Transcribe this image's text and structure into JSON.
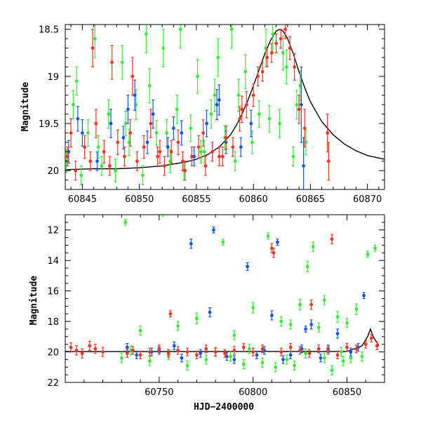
{
  "chart_data": [
    {
      "type": "scatter",
      "panel": "top",
      "ylabel": "Magnitude",
      "xlabel": "",
      "xlim": [
        60843.5,
        60871.5
      ],
      "ylim": [
        20.2,
        18.45
      ],
      "y_inverted": true,
      "xticks": [
        60845,
        60850,
        60855,
        60860,
        60865,
        60870
      ],
      "yticks": [
        18.5,
        19,
        19.5,
        20
      ],
      "ytick_labels": [
        "18.5",
        "19",
        "19.5",
        "20"
      ],
      "grid": false,
      "colors": {
        "green": "#33ee33",
        "blue": "#1155ee",
        "red": "#ff3322",
        "model": "#000000"
      },
      "model_curve": {
        "name": "model",
        "x": [
          60843.5,
          60846,
          60848,
          60850,
          60852,
          60854,
          60855,
          60856,
          60857,
          60858,
          60858.5,
          60859,
          60859.5,
          60860,
          60860.5,
          60861,
          60861.5,
          60862,
          60862.3,
          60862.6,
          60863,
          60863.5,
          60864,
          60864.5,
          60865,
          60866,
          60867,
          60868,
          60869,
          60870,
          60871.5
        ],
        "y": [
          19.99,
          19.98,
          19.98,
          19.97,
          19.95,
          19.91,
          19.88,
          19.83,
          19.75,
          19.62,
          19.52,
          19.4,
          19.26,
          19.1,
          18.93,
          18.76,
          18.62,
          18.52,
          18.5,
          18.52,
          18.6,
          18.76,
          18.95,
          19.12,
          19.27,
          19.48,
          19.62,
          19.72,
          19.79,
          19.84,
          19.88
        ]
      },
      "series": [
        {
          "name": "green",
          "color": "#33ee33",
          "x": [
            60843.6,
            60844.2,
            60844.9,
            60845.5,
            60846.1,
            60846.7,
            60847.3,
            60847.9,
            60848.5,
            60849.1,
            60849.7,
            60850.3,
            60850.9,
            60851.5,
            60852.1,
            60852.7,
            60853.3,
            60853.9,
            60854.5,
            60855.1,
            60855.7,
            60856.3,
            60856.9,
            60857.5,
            60858.1,
            60858.7,
            60859.3,
            60859.9,
            60860.5,
            60861.1,
            60861.7,
            60862.3,
            60862.9,
            60863.5,
            60864.1,
            60864.6,
            60844.5,
            60846.4,
            60848.8,
            60850.6,
            60852.4,
            60853.6,
            60855.4,
            60856.6,
            60858.4,
            60861.4,
            60862.6,
            60863.8
          ],
          "y": [
            19.9,
            19.3,
            20.05,
            19.6,
            18.6,
            19.95,
            19.4,
            20.0,
            18.85,
            19.7,
            19.3,
            20.05,
            19.1,
            19.6,
            18.7,
            19.9,
            19.35,
            20.0,
            19.55,
            19.0,
            19.8,
            19.4,
            18.8,
            19.65,
            18.5,
            19.2,
            18.95,
            19.7,
            19.4,
            18.7,
            18.55,
            19.5,
            18.9,
            19.85,
            19.1,
            19.7,
            19.05,
            19.75,
            19.5,
            18.55,
            19.6,
            18.5,
            19.8,
            19.2,
            19.9,
            19.45,
            18.75,
            19.3
          ],
          "err": [
            0.12,
            0.15,
            0.1,
            0.14,
            0.2,
            0.1,
            0.15,
            0.12,
            0.18,
            0.14,
            0.16,
            0.1,
            0.18,
            0.13,
            0.2,
            0.12,
            0.15,
            0.1,
            0.14,
            0.18,
            0.12,
            0.15,
            0.2,
            0.13,
            0.2,
            0.17,
            0.18,
            0.12,
            0.14,
            0.2,
            0.2,
            0.15,
            0.18,
            0.1,
            0.16,
            0.13,
            0.15,
            0.12,
            0.13,
            0.2,
            0.14,
            0.2,
            0.12,
            0.17,
            0.1,
            0.14,
            0.18,
            0.15
          ]
        },
        {
          "name": "blue",
          "color": "#1155ee",
          "x": [
            60843.8,
            60845.0,
            60846.3,
            60847.5,
            60848.6,
            60849.6,
            60850.7,
            60851.2,
            60852.5,
            60853.7,
            60854.8,
            60855.9,
            60856.8,
            60857.6,
            60858.9,
            60859.8,
            60864.2,
            60864.4,
            60844.6,
            60849.0,
            60853.0,
            60857.0
          ],
          "y": [
            19.8,
            19.6,
            19.9,
            19.5,
            19.65,
            19.2,
            19.7,
            19.4,
            19.75,
            19.6,
            19.85,
            19.5,
            19.3,
            19.7,
            19.75,
            19.5,
            19.3,
            19.95,
            19.45,
            19.35,
            19.55,
            19.25
          ],
          "err": [
            0.12,
            0.14,
            0.1,
            0.15,
            0.12,
            0.16,
            0.12,
            0.15,
            0.1,
            0.13,
            0.1,
            0.14,
            0.16,
            0.12,
            0.1,
            0.14,
            0.4,
            0.3,
            0.13,
            0.15,
            0.12,
            0.16
          ]
        },
        {
          "name": "red",
          "color": "#ff3322",
          "x": [
            60843.7,
            60844.0,
            60844.4,
            60845.2,
            60845.7,
            60846.2,
            60846.9,
            60847.4,
            60848.1,
            60848.7,
            60849.2,
            60849.8,
            60850.4,
            60851.0,
            60851.6,
            60852.2,
            60852.8,
            60853.4,
            60854.0,
            60854.6,
            60855.2,
            60855.8,
            60856.4,
            60857.0,
            60857.6,
            60858.2,
            60858.8,
            60859.4,
            60860.0,
            60860.4,
            60860.8,
            60861.2,
            60861.6,
            60862.0,
            60862.4,
            60862.8,
            60863.2,
            60863.6,
            60864.0,
            60864.5,
            60866.5,
            60866.6,
            60845.9,
            60847.6,
            60849.4,
            60851.8,
            60853.8,
            60855.6,
            60857.3,
            60859.0
          ],
          "y": [
            19.85,
            19.6,
            20.0,
            19.75,
            19.9,
            19.5,
            19.8,
            19.95,
            19.7,
            19.85,
            19.6,
            19.9,
            19.75,
            19.5,
            19.85,
            19.95,
            19.8,
            19.7,
            20.0,
            19.85,
            19.75,
            19.95,
            19.8,
            19.85,
            19.65,
            19.75,
            19.45,
            19.3,
            19.2,
            19.0,
            18.95,
            18.8,
            18.75,
            18.65,
            18.6,
            18.5,
            18.7,
            18.9,
            19.35,
            19.55,
            19.6,
            19.9,
            18.7,
            18.85,
            19.0,
            19.8,
            19.9,
            19.6,
            19.85,
            19.35
          ],
          "err": [
            0.1,
            0.15,
            0.1,
            0.12,
            0.1,
            0.15,
            0.12,
            0.1,
            0.13,
            0.1,
            0.14,
            0.1,
            0.12,
            0.15,
            0.1,
            0.1,
            0.12,
            0.13,
            0.1,
            0.1,
            0.12,
            0.1,
            0.1,
            0.1,
            0.12,
            0.1,
            0.13,
            0.14,
            0.12,
            0.1,
            0.1,
            0.1,
            0.1,
            0.1,
            0.1,
            0.1,
            0.12,
            0.14,
            0.15,
            0.2,
            0.2,
            0.2,
            0.2,
            0.18,
            0.2,
            0.12,
            0.1,
            0.14,
            0.1,
            0.14
          ]
        }
      ]
    },
    {
      "type": "scatter",
      "panel": "bottom",
      "ylabel": "Magnitude",
      "xlabel": "HJD−2400000",
      "xlim": [
        60700,
        60870
      ],
      "ylim": [
        22,
        11
      ],
      "y_inverted": true,
      "xticks": [
        60750,
        60800,
        60850
      ],
      "yticks": [
        12,
        14,
        16,
        18,
        20,
        22
      ],
      "ytick_labels": [
        "12",
        "14",
        "16",
        "18",
        "20",
        "22"
      ],
      "grid": false,
      "colors": {
        "green": "#33ee33",
        "blue": "#1155ee",
        "red": "#ff3322",
        "model": "#000000"
      },
      "model_curve": {
        "name": "model",
        "x": [
          60700,
          60850,
          60858,
          60861,
          60862.5,
          60864,
          60867
        ],
        "y": [
          19.98,
          19.97,
          19.6,
          19.0,
          18.5,
          19.0,
          19.6
        ]
      },
      "series": [
        {
          "name": "green",
          "color": "#33ee33",
          "x": [
            60732,
            60752,
            60784,
            60808,
            60829,
            60832,
            60838,
            60861,
            60865,
            60740,
            60760,
            60770,
            60790,
            60800,
            60815,
            60820,
            60825,
            60835,
            60845,
            60850,
            60855,
            60730,
            60745,
            60765,
            60775,
            60795,
            60805,
            60812,
            60822,
            60842,
            60848,
            60852,
            60858,
            60735,
            60755,
            60780,
            60788,
            60798,
            60818,
            60828,
            60838,
            60847
          ],
          "y": [
            11.5,
            10.9,
            12.8,
            12.4,
            14.4,
            13.1,
            16.6,
            13.6,
            13.2,
            18.6,
            18.3,
            17.8,
            18.9,
            17.1,
            18.0,
            18.2,
            16.9,
            18.4,
            17.7,
            18.1,
            17.2,
            20.4,
            20.6,
            20.9,
            20.5,
            20.8,
            20.7,
            21.0,
            20.9,
            21.2,
            20.6,
            20.4,
            20.3,
            19.9,
            20.2,
            20.0,
            20.3,
            19.8,
            20.5,
            20.1,
            20.4,
            20.0
          ],
          "err": [
            0.2,
            0.2,
            0.2,
            0.2,
            0.35,
            0.3,
            0.3,
            0.2,
            0.2,
            0.3,
            0.3,
            0.35,
            0.3,
            0.35,
            0.3,
            0.3,
            0.35,
            0.3,
            0.35,
            0.3,
            0.35,
            0.3,
            0.3,
            0.3,
            0.3,
            0.3,
            0.3,
            0.3,
            0.3,
            0.3,
            0.3,
            0.3,
            0.3,
            0.3,
            0.3,
            0.3,
            0.3,
            0.3,
            0.3,
            0.3,
            0.3,
            0.3
          ]
        },
        {
          "name": "blue",
          "color": "#1155ee",
          "x": [
            60767,
            60779,
            60797,
            60813,
            60828,
            60859,
            60777,
            60810,
            60831,
            60845,
            60738,
            60750,
            60762,
            60772,
            60786,
            60802,
            60816,
            60826,
            60836,
            60852,
            60733,
            60746,
            60758,
            60790,
            60806,
            60820,
            60840,
            60856
          ],
          "y": [
            12.9,
            12.0,
            14.4,
            12.8,
            18.5,
            16.3,
            17.4,
            17.6,
            18.2,
            18.8,
            20.2,
            19.9,
            20.4,
            20.1,
            20.3,
            20.2,
            20.5,
            19.8,
            20.4,
            20.0,
            19.7,
            20.0,
            19.6,
            20.5,
            19.9,
            20.2,
            19.8,
            19.7
          ],
          "err": [
            0.3,
            0.2,
            0.25,
            0.2,
            0.2,
            0.2,
            0.3,
            0.3,
            0.3,
            0.3,
            0.25,
            0.25,
            0.25,
            0.25,
            0.25,
            0.25,
            0.25,
            0.25,
            0.25,
            0.25,
            0.25,
            0.25,
            0.25,
            0.25,
            0.25,
            0.25,
            0.25,
            0.25
          ]
        },
        {
          "name": "red",
          "color": "#ff3322",
          "x": [
            60703,
            60706,
            60709,
            60713,
            60716,
            60720,
            60811,
            60842,
            60810,
            60756,
            60831,
            60733,
            60736,
            60740,
            60745,
            60750,
            60755,
            60760,
            60765,
            60770,
            60775,
            60780,
            60785,
            60790,
            60795,
            60800,
            60805,
            60815,
            60820,
            60825,
            60830,
            60835,
            60840,
            60845,
            60850,
            60855,
            60860,
            60863,
            60866
          ],
          "y": [
            19.7,
            19.9,
            20.1,
            19.6,
            19.8,
            20.0,
            13.5,
            12.6,
            13.2,
            17.5,
            16.9,
            20.1,
            19.9,
            20.2,
            20.0,
            19.8,
            20.1,
            19.9,
            20.0,
            20.2,
            19.8,
            20.0,
            20.1,
            19.9,
            19.7,
            20.0,
            19.8,
            20.0,
            19.7,
            19.9,
            20.1,
            19.8,
            19.9,
            20.2,
            19.7,
            19.8,
            19.5,
            19.1,
            19.6
          ],
          "err": [
            0.3,
            0.3,
            0.3,
            0.3,
            0.3,
            0.3,
            0.3,
            0.3,
            0.3,
            0.2,
            0.3,
            0.25,
            0.25,
            0.25,
            0.25,
            0.25,
            0.25,
            0.25,
            0.25,
            0.25,
            0.25,
            0.25,
            0.25,
            0.25,
            0.25,
            0.25,
            0.25,
            0.25,
            0.25,
            0.25,
            0.25,
            0.25,
            0.25,
            0.25,
            0.25,
            0.25,
            0.25,
            0.25,
            0.25
          ]
        }
      ]
    }
  ]
}
